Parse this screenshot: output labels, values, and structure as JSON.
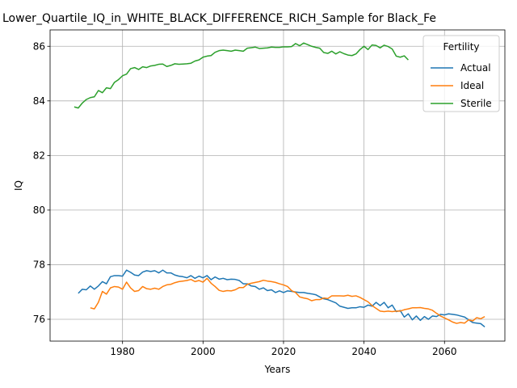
{
  "chart_data": {
    "type": "line",
    "title": "Lower_Quartile_IQ_in_WHITE_BLACK_DIFFERENCE_RICH_Sample for Black_Fe",
    "xlabel": "Years",
    "ylabel": "IQ",
    "xlim": [
      1962,
      2075
    ],
    "ylim": [
      75.2,
      86.6
    ],
    "xticks": [
      1980,
      2000,
      2020,
      2040,
      2060
    ],
    "yticks": [
      76,
      78,
      80,
      82,
      84,
      86
    ],
    "grid": true,
    "legend": {
      "title": "Fertility",
      "placement": "top-right"
    },
    "series": [
      {
        "name": "Actual",
        "color": "#1f77b4",
        "points": [
          [
            1969,
            76.95
          ],
          [
            1970,
            77.1
          ],
          [
            1971,
            77.08
          ],
          [
            1972,
            77.22
          ],
          [
            1973,
            77.1
          ],
          [
            1974,
            77.22
          ],
          [
            1975,
            77.38
          ],
          [
            1976,
            77.3
          ],
          [
            1977,
            77.56
          ],
          [
            1978,
            77.6
          ],
          [
            1979,
            77.6
          ],
          [
            1980,
            77.58
          ],
          [
            1981,
            77.8
          ],
          [
            1982,
            77.72
          ],
          [
            1983,
            77.62
          ],
          [
            1984,
            77.6
          ],
          [
            1985,
            77.73
          ],
          [
            1986,
            77.78
          ],
          [
            1987,
            77.75
          ],
          [
            1988,
            77.78
          ],
          [
            1989,
            77.7
          ],
          [
            1990,
            77.8
          ],
          [
            1991,
            77.7
          ],
          [
            1992,
            77.7
          ],
          [
            1993,
            77.62
          ],
          [
            1994,
            77.58
          ],
          [
            1995,
            77.56
          ],
          [
            1996,
            77.52
          ],
          [
            1997,
            77.6
          ],
          [
            1998,
            77.5
          ],
          [
            1999,
            77.58
          ],
          [
            2000,
            77.52
          ],
          [
            2001,
            77.6
          ],
          [
            2002,
            77.45
          ],
          [
            2003,
            77.55
          ],
          [
            2004,
            77.47
          ],
          [
            2005,
            77.5
          ],
          [
            2006,
            77.45
          ],
          [
            2007,
            77.47
          ],
          [
            2008,
            77.46
          ],
          [
            2009,
            77.42
          ],
          [
            2010,
            77.3
          ],
          [
            2011,
            77.3
          ],
          [
            2012,
            77.22
          ],
          [
            2013,
            77.2
          ],
          [
            2014,
            77.1
          ],
          [
            2015,
            77.15
          ],
          [
            2016,
            77.05
          ],
          [
            2017,
            77.08
          ],
          [
            2018,
            76.98
          ],
          [
            2019,
            77.04
          ],
          [
            2020,
            76.98
          ],
          [
            2021,
            77.04
          ],
          [
            2022,
            77.02
          ],
          [
            2023,
            77.0
          ],
          [
            2024,
            76.98
          ],
          [
            2025,
            76.98
          ],
          [
            2026,
            76.95
          ],
          [
            2027,
            76.93
          ],
          [
            2028,
            76.9
          ],
          [
            2029,
            76.82
          ],
          [
            2030,
            76.75
          ],
          [
            2031,
            76.72
          ],
          [
            2032,
            76.66
          ],
          [
            2033,
            76.6
          ],
          [
            2034,
            76.48
          ],
          [
            2035,
            76.44
          ],
          [
            2036,
            76.4
          ],
          [
            2037,
            76.42
          ],
          [
            2038,
            76.42
          ],
          [
            2039,
            76.46
          ],
          [
            2040,
            76.44
          ],
          [
            2041,
            76.52
          ],
          [
            2042,
            76.48
          ],
          [
            2043,
            76.62
          ],
          [
            2044,
            76.5
          ],
          [
            2045,
            76.62
          ],
          [
            2046,
            76.42
          ],
          [
            2047,
            76.52
          ],
          [
            2048,
            76.28
          ],
          [
            2049,
            76.32
          ],
          [
            2050,
            76.08
          ],
          [
            2051,
            76.2
          ],
          [
            2052,
            75.98
          ],
          [
            2053,
            76.12
          ],
          [
            2054,
            75.96
          ],
          [
            2055,
            76.1
          ],
          [
            2056,
            76.0
          ],
          [
            2057,
            76.12
          ],
          [
            2058,
            76.1
          ],
          [
            2059,
            76.18
          ],
          [
            2060,
            76.16
          ],
          [
            2061,
            76.2
          ],
          [
            2062,
            76.18
          ],
          [
            2063,
            76.16
          ],
          [
            2064,
            76.12
          ],
          [
            2065,
            76.08
          ],
          [
            2066,
            75.98
          ],
          [
            2067,
            75.88
          ],
          [
            2068,
            75.86
          ],
          [
            2069,
            75.84
          ],
          [
            2070,
            75.72
          ]
        ]
      },
      {
        "name": "Ideal",
        "color": "#ff7f0e",
        "points": [
          [
            1972,
            76.42
          ],
          [
            1973,
            76.38
          ],
          [
            1974,
            76.62
          ],
          [
            1975,
            77.02
          ],
          [
            1976,
            76.92
          ],
          [
            1977,
            77.15
          ],
          [
            1978,
            77.2
          ],
          [
            1979,
            77.18
          ],
          [
            1980,
            77.1
          ],
          [
            1981,
            77.36
          ],
          [
            1982,
            77.15
          ],
          [
            1983,
            77.02
          ],
          [
            1984,
            77.05
          ],
          [
            1985,
            77.2
          ],
          [
            1986,
            77.12
          ],
          [
            1987,
            77.1
          ],
          [
            1988,
            77.14
          ],
          [
            1989,
            77.1
          ],
          [
            1990,
            77.2
          ],
          [
            1991,
            77.26
          ],
          [
            1992,
            77.28
          ],
          [
            1993,
            77.34
          ],
          [
            1994,
            77.38
          ],
          [
            1995,
            77.4
          ],
          [
            1996,
            77.42
          ],
          [
            1997,
            77.46
          ],
          [
            1998,
            77.38
          ],
          [
            1999,
            77.42
          ],
          [
            2000,
            77.36
          ],
          [
            2001,
            77.5
          ],
          [
            2002,
            77.32
          ],
          [
            2003,
            77.2
          ],
          [
            2004,
            77.06
          ],
          [
            2005,
            77.02
          ],
          [
            2006,
            77.05
          ],
          [
            2007,
            77.04
          ],
          [
            2008,
            77.08
          ],
          [
            2009,
            77.16
          ],
          [
            2010,
            77.16
          ],
          [
            2011,
            77.28
          ],
          [
            2012,
            77.32
          ],
          [
            2013,
            77.35
          ],
          [
            2014,
            77.38
          ],
          [
            2015,
            77.43
          ],
          [
            2016,
            77.4
          ],
          [
            2017,
            77.38
          ],
          [
            2018,
            77.35
          ],
          [
            2019,
            77.3
          ],
          [
            2020,
            77.26
          ],
          [
            2021,
            77.2
          ],
          [
            2022,
            77.05
          ],
          [
            2023,
            76.98
          ],
          [
            2024,
            76.82
          ],
          [
            2025,
            76.78
          ],
          [
            2026,
            76.75
          ],
          [
            2027,
            76.68
          ],
          [
            2028,
            76.72
          ],
          [
            2029,
            76.72
          ],
          [
            2030,
            76.78
          ],
          [
            2031,
            76.76
          ],
          [
            2032,
            76.86
          ],
          [
            2033,
            76.86
          ],
          [
            2034,
            76.86
          ],
          [
            2035,
            76.85
          ],
          [
            2036,
            76.88
          ],
          [
            2037,
            76.84
          ],
          [
            2038,
            76.86
          ],
          [
            2039,
            76.8
          ],
          [
            2040,
            76.72
          ],
          [
            2041,
            76.64
          ],
          [
            2042,
            76.5
          ],
          [
            2043,
            76.4
          ],
          [
            2044,
            76.3
          ],
          [
            2045,
            76.28
          ],
          [
            2046,
            76.3
          ],
          [
            2047,
            76.28
          ],
          [
            2048,
            76.3
          ],
          [
            2049,
            76.3
          ],
          [
            2050,
            76.35
          ],
          [
            2051,
            76.38
          ],
          [
            2052,
            76.42
          ],
          [
            2053,
            76.42
          ],
          [
            2054,
            76.43
          ],
          [
            2055,
            76.4
          ],
          [
            2056,
            76.38
          ],
          [
            2057,
            76.33
          ],
          [
            2058,
            76.22
          ],
          [
            2059,
            76.12
          ],
          [
            2060,
            76.05
          ],
          [
            2061,
            75.98
          ],
          [
            2062,
            75.9
          ],
          [
            2063,
            75.85
          ],
          [
            2064,
            75.88
          ],
          [
            2065,
            75.86
          ],
          [
            2066,
            75.98
          ],
          [
            2067,
            75.94
          ],
          [
            2068,
            76.06
          ],
          [
            2069,
            76.02
          ],
          [
            2070,
            76.1
          ]
        ]
      },
      {
        "name": "Sterile",
        "color": "#2ca02c",
        "points": [
          [
            1968,
            83.78
          ],
          [
            1969,
            83.74
          ],
          [
            1970,
            83.92
          ],
          [
            1971,
            84.05
          ],
          [
            1972,
            84.12
          ],
          [
            1973,
            84.15
          ],
          [
            1974,
            84.38
          ],
          [
            1975,
            84.3
          ],
          [
            1976,
            84.48
          ],
          [
            1977,
            84.45
          ],
          [
            1978,
            84.68
          ],
          [
            1979,
            84.78
          ],
          [
            1980,
            84.92
          ],
          [
            1981,
            84.98
          ],
          [
            1982,
            85.18
          ],
          [
            1983,
            85.22
          ],
          [
            1984,
            85.15
          ],
          [
            1985,
            85.25
          ],
          [
            1986,
            85.22
          ],
          [
            1987,
            85.28
          ],
          [
            1988,
            85.3
          ],
          [
            1989,
            85.34
          ],
          [
            1990,
            85.35
          ],
          [
            1991,
            85.26
          ],
          [
            1992,
            85.3
          ],
          [
            1993,
            85.36
          ],
          [
            1994,
            85.34
          ],
          [
            1995,
            85.35
          ],
          [
            1996,
            85.36
          ],
          [
            1997,
            85.38
          ],
          [
            1998,
            85.46
          ],
          [
            1999,
            85.5
          ],
          [
            2000,
            85.6
          ],
          [
            2001,
            85.64
          ],
          [
            2002,
            85.66
          ],
          [
            2003,
            85.78
          ],
          [
            2004,
            85.84
          ],
          [
            2005,
            85.86
          ],
          [
            2006,
            85.84
          ],
          [
            2007,
            85.82
          ],
          [
            2008,
            85.86
          ],
          [
            2009,
            85.84
          ],
          [
            2010,
            85.82
          ],
          [
            2011,
            85.93
          ],
          [
            2012,
            85.95
          ],
          [
            2013,
            85.97
          ],
          [
            2014,
            85.92
          ],
          [
            2015,
            85.93
          ],
          [
            2016,
            85.94
          ],
          [
            2017,
            85.97
          ],
          [
            2018,
            85.96
          ],
          [
            2019,
            85.96
          ],
          [
            2020,
            85.98
          ],
          [
            2021,
            85.98
          ],
          [
            2022,
            85.99
          ],
          [
            2023,
            86.1
          ],
          [
            2024,
            86.02
          ],
          [
            2025,
            86.12
          ],
          [
            2026,
            86.06
          ],
          [
            2027,
            86.0
          ],
          [
            2028,
            85.96
          ],
          [
            2029,
            85.93
          ],
          [
            2030,
            85.77
          ],
          [
            2031,
            85.74
          ],
          [
            2032,
            85.82
          ],
          [
            2033,
            85.72
          ],
          [
            2034,
            85.8
          ],
          [
            2035,
            85.73
          ],
          [
            2036,
            85.68
          ],
          [
            2037,
            85.66
          ],
          [
            2038,
            85.72
          ],
          [
            2039,
            85.88
          ],
          [
            2040,
            86.0
          ],
          [
            2041,
            85.88
          ],
          [
            2042,
            86.05
          ],
          [
            2043,
            86.03
          ],
          [
            2044,
            85.94
          ],
          [
            2045,
            86.04
          ],
          [
            2046,
            85.99
          ],
          [
            2047,
            85.9
          ],
          [
            2048,
            85.64
          ],
          [
            2049,
            85.6
          ],
          [
            2050,
            85.65
          ],
          [
            2051,
            85.5
          ]
        ]
      }
    ]
  }
}
